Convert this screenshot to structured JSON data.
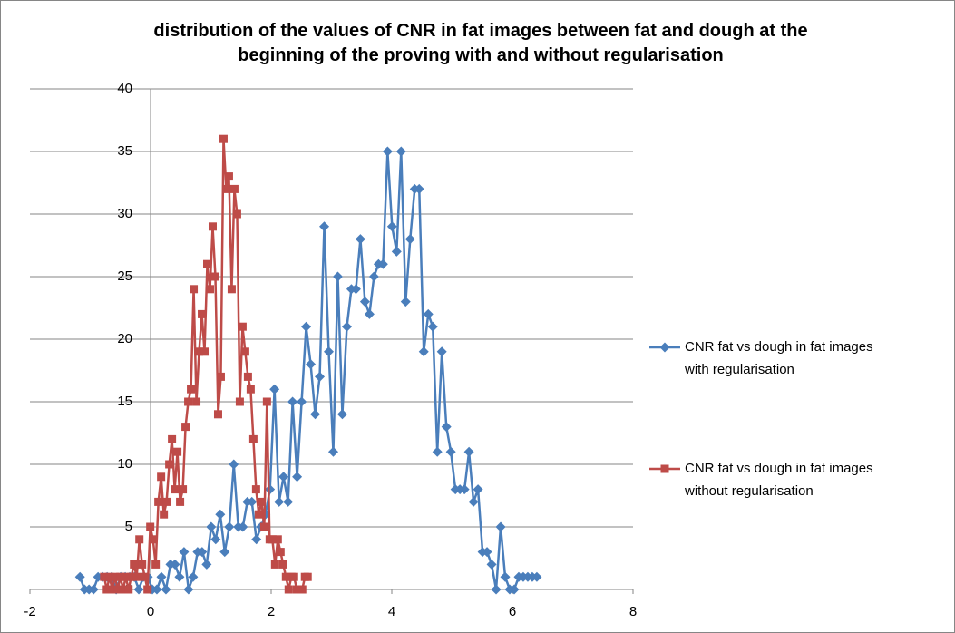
{
  "chart_data": {
    "type": "scatter",
    "title": "distribution of the values of CNR in fat images between fat and dough at the beginning  of the proving with and without regularisation",
    "xlim": [
      -2,
      8
    ],
    "xticks": [
      -2,
      0,
      2,
      4,
      6,
      8
    ],
    "ylim": [
      0,
      40
    ],
    "yticks": [
      0,
      5,
      10,
      15,
      20,
      25,
      30,
      35,
      40
    ],
    "grid": true,
    "legend": "right",
    "series": [
      {
        "name": "CNR fat vs dough in fat images with regularisation",
        "color": "#4a7ebb",
        "marker": "diamond",
        "x": [
          -1.17,
          -1.095,
          -1.02,
          -0.945,
          -0.87,
          -0.795,
          -0.72,
          -0.645,
          -0.57,
          -0.495,
          -0.42,
          -0.345,
          -0.27,
          -0.195,
          -0.12,
          -0.045,
          0.03,
          0.105,
          0.18,
          0.255,
          0.33,
          0.405,
          0.48,
          0.555,
          0.63,
          0.705,
          0.78,
          0.855,
          0.93,
          1.005,
          1.08,
          1.155,
          1.23,
          1.305,
          1.38,
          1.455,
          1.53,
          1.605,
          1.68,
          1.755,
          1.83,
          1.905,
          1.98,
          2.055,
          2.13,
          2.205,
          2.28,
          2.355,
          2.43,
          2.505,
          2.58,
          2.655,
          2.73,
          2.805,
          2.88,
          2.955,
          3.03,
          3.105,
          3.18,
          3.255,
          3.33,
          3.405,
          3.48,
          3.555,
          3.63,
          3.705,
          3.78,
          3.855,
          3.93,
          4.005,
          4.08,
          4.155,
          4.23,
          4.305,
          4.38,
          4.455,
          4.53,
          4.605,
          4.68,
          4.755,
          4.83,
          4.905,
          4.98,
          5.055,
          5.13,
          5.205,
          5.28,
          5.355,
          5.43,
          5.505,
          5.58,
          5.655,
          5.73,
          5.805,
          5.88,
          5.955,
          6.03,
          6.105,
          6.18,
          6.255,
          6.33,
          6.405
        ],
        "values": [
          1,
          0,
          0,
          0,
          1,
          1,
          1,
          1,
          0,
          1,
          1,
          1,
          1,
          0,
          1,
          1,
          0,
          0,
          1,
          0,
          2,
          2,
          1,
          3,
          0,
          1,
          3,
          3,
          2,
          5,
          4,
          6,
          3,
          5,
          10,
          5,
          5,
          7,
          7,
          4,
          5,
          6,
          8,
          16,
          7,
          9,
          7,
          15,
          9,
          15,
          21,
          18,
          14,
          17,
          29,
          19,
          11,
          25,
          14,
          21,
          24,
          24,
          28,
          23,
          22,
          25,
          26,
          26,
          35,
          29,
          27,
          35,
          23,
          28,
          32,
          32,
          19,
          22,
          21,
          11,
          19,
          13,
          11,
          8,
          8,
          8,
          11,
          7,
          8,
          3,
          3,
          2,
          0,
          5,
          1,
          0,
          0,
          1,
          1,
          1,
          1,
          1
        ]
      },
      {
        "name": "CNR fat vs dough in fat images without regularisation",
        "color": "#be4b48",
        "marker": "square",
        "x": [
          -0.77,
          -0.725,
          -0.68,
          -0.635,
          -0.59,
          -0.545,
          -0.5,
          -0.455,
          -0.41,
          -0.365,
          -0.32,
          -0.275,
          -0.23,
          -0.185,
          -0.14,
          -0.095,
          -0.05,
          -0.005,
          0.04,
          0.085,
          0.13,
          0.175,
          0.22,
          0.265,
          0.31,
          0.355,
          0.4,
          0.445,
          0.49,
          0.535,
          0.58,
          0.625,
          0.67,
          0.715,
          0.76,
          0.805,
          0.85,
          0.895,
          0.94,
          0.985,
          1.03,
          1.075,
          1.12,
          1.165,
          1.21,
          1.255,
          1.3,
          1.345,
          1.39,
          1.435,
          1.48,
          1.525,
          1.57,
          1.615,
          1.66,
          1.705,
          1.75,
          1.795,
          1.84,
          1.885,
          1.93,
          1.975,
          2.02,
          2.065,
          2.11,
          2.155,
          2.2,
          2.245,
          2.29,
          2.335,
          2.38,
          2.425,
          2.47,
          2.515,
          2.56,
          2.605
        ],
        "values": [
          1,
          0,
          1,
          0,
          1,
          0,
          1,
          0,
          1,
          0,
          1,
          2,
          1,
          4,
          2,
          1,
          0,
          5,
          4,
          2,
          7,
          9,
          6,
          7,
          10,
          12,
          8,
          11,
          7,
          8,
          13,
          15,
          16,
          24,
          15,
          19,
          22,
          19,
          26,
          24,
          29,
          25,
          14,
          17,
          36,
          32,
          33,
          24,
          32,
          30,
          15,
          21,
          19,
          17,
          16,
          12,
          8,
          6,
          7,
          5,
          15,
          4,
          4,
          2,
          4,
          3,
          2,
          1,
          0,
          1,
          1,
          0,
          0,
          0,
          1,
          1
        ]
      }
    ]
  }
}
